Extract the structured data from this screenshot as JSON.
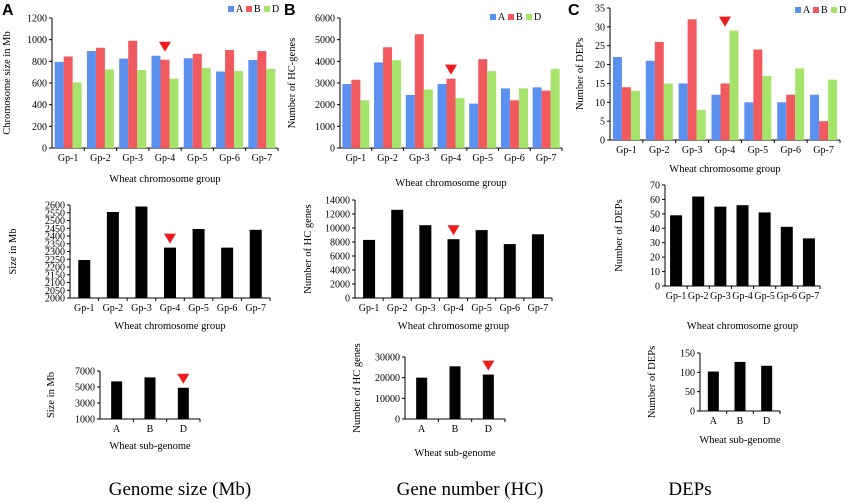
{
  "figure": {
    "colors": {
      "A": "#5b8ff0",
      "B": "#f05a5e",
      "D": "#a6e36a",
      "black": "#000000",
      "arrow": "#ee1c1c",
      "axis": "#000000"
    },
    "columns": [
      {
        "letter": "A",
        "title": "Genome size (Mb)"
      },
      {
        "letter": "B",
        "title": "Gene number (HC)"
      },
      {
        "letter": "C",
        "title": "DEPs"
      }
    ]
  },
  "chart_data": [
    {
      "id": "A-top",
      "type": "bar",
      "title": "",
      "xlabel": "Wheat chromosome group",
      "ylabel": "Chromosome size in Mb",
      "ylim": [
        0,
        1200
      ],
      "yticks": [
        0,
        200,
        400,
        600,
        800,
        1000,
        1200
      ],
      "categories": [
        "Gp-1",
        "Gp-2",
        "Gp-3",
        "Gp-4",
        "Gp-5",
        "Gp-6",
        "Gp-7"
      ],
      "series": [
        {
          "name": "A",
          "values": [
            795,
            895,
            825,
            852,
            828,
            706,
            812
          ]
        },
        {
          "name": "B",
          "values": [
            845,
            925,
            990,
            815,
            870,
            905,
            895
          ]
        },
        {
          "name": "D",
          "values": [
            605,
            725,
            720,
            640,
            740,
            710,
            730
          ]
        }
      ],
      "legend": [
        "A",
        "B",
        "D"
      ],
      "legend_position": "top-right",
      "highlight_category": "Gp-4"
    },
    {
      "id": "A-mid",
      "type": "bar",
      "title": "",
      "xlabel": "Wheat chromosome group",
      "ylabel": "Size in Mb",
      "ylim": [
        2000,
        2600
      ],
      "yticks": [
        2000,
        2050,
        2100,
        2150,
        2200,
        2250,
        2300,
        2350,
        2400,
        2450,
        2500,
        2550,
        2600
      ],
      "categories": [
        "Gp-1",
        "Gp-2",
        "Gp-3",
        "Gp-4",
        "Gp-5",
        "Gp-6",
        "Gp-7"
      ],
      "values": [
        2245,
        2555,
        2590,
        2325,
        2445,
        2325,
        2440
      ],
      "highlight_category": "Gp-4"
    },
    {
      "id": "A-bot",
      "type": "bar",
      "title": "",
      "xlabel": "Wheat sub-genome",
      "ylabel": "Size in Mb",
      "ylim": [
        1000,
        7000
      ],
      "yticks": [
        1000,
        3000,
        5000,
        7000
      ],
      "categories": [
        "A",
        "B",
        "D"
      ],
      "values": [
        5700,
        6200,
        4900
      ],
      "highlight_category": "D"
    },
    {
      "id": "B-top",
      "type": "bar",
      "title": "",
      "xlabel": "Wheat chromosome group",
      "ylabel": "Number of HC-genes",
      "ylim": [
        0,
        6000
      ],
      "yticks": [
        0,
        1000,
        2000,
        3000,
        4000,
        5000,
        6000
      ],
      "categories": [
        "Gp-1",
        "Gp-2",
        "Gp-3",
        "Gp-4",
        "Gp-5",
        "Gp-6",
        "Gp-7"
      ],
      "series": [
        {
          "name": "A",
          "values": [
            2950,
            3950,
            2450,
            2950,
            2050,
            2750,
            2800
          ]
        },
        {
          "name": "B",
          "values": [
            3150,
            4650,
            5250,
            3200,
            4100,
            2200,
            2650
          ]
        },
        {
          "name": "D",
          "values": [
            2200,
            4050,
            2700,
            2300,
            3550,
            2750,
            3650
          ]
        }
      ],
      "legend": [
        "A",
        "B",
        "D"
      ],
      "legend_position": "top-right",
      "highlight_category": "Gp-4"
    },
    {
      "id": "B-mid",
      "type": "bar",
      "title": "",
      "xlabel": "Wheat chromosome group",
      "ylabel": "Number of HC genes",
      "ylim": [
        0,
        14000
      ],
      "yticks": [
        0,
        2000,
        4000,
        6000,
        8000,
        10000,
        12000,
        14000
      ],
      "categories": [
        "Gp-1",
        "Gp-2",
        "Gp-3",
        "Gp-4",
        "Gp-5",
        "Gp-6",
        "Gp-7"
      ],
      "values": [
        8300,
        12600,
        10400,
        8400,
        9700,
        7700,
        9100
      ],
      "highlight_category": "Gp-4"
    },
    {
      "id": "B-bot",
      "type": "bar",
      "title": "",
      "xlabel": "Wheat sub-genome",
      "ylabel": "Number of HC genes",
      "ylim": [
        0,
        30000
      ],
      "yticks": [
        0,
        10000,
        20000,
        30000
      ],
      "categories": [
        "A",
        "B",
        "D"
      ],
      "values": [
        20000,
        25500,
        21500
      ],
      "highlight_category": "D"
    },
    {
      "id": "C-top",
      "type": "bar",
      "title": "",
      "xlabel": "Wheat chromosome group",
      "ylabel": "Number of DEPs",
      "ylim": [
        0,
        35
      ],
      "yticks": [
        0,
        5,
        10,
        15,
        20,
        25,
        30,
        35
      ],
      "categories": [
        "Gp-1",
        "Gp-2",
        "Gp-3",
        "Gp-4",
        "Gp-5",
        "Gp-6",
        "Gp-7"
      ],
      "series": [
        {
          "name": "A",
          "values": [
            22,
            21,
            15,
            12,
            10,
            10,
            12
          ]
        },
        {
          "name": "B",
          "values": [
            14,
            26,
            32,
            15,
            24,
            12,
            5
          ]
        },
        {
          "name": "D",
          "values": [
            13,
            15,
            8,
            29,
            17,
            19,
            16
          ]
        }
      ],
      "legend": [
        "A",
        "B",
        "D"
      ],
      "legend_position": "top-right",
      "highlight_category": "Gp-4"
    },
    {
      "id": "C-mid",
      "type": "bar",
      "title": "",
      "xlabel": "Wheat chromosome group",
      "ylabel": "Number of DEPs",
      "ylim": [
        0,
        70
      ],
      "yticks": [
        0,
        10,
        20,
        30,
        40,
        50,
        60,
        70
      ],
      "categories": [
        "Gp-1",
        "Gp-2",
        "Gp-3",
        "Gp-4",
        "Gp-5",
        "Gp-6",
        "Gp-7"
      ],
      "values": [
        49,
        62,
        55,
        56,
        51,
        41,
        33
      ]
    },
    {
      "id": "C-bot",
      "type": "bar",
      "title": "",
      "xlabel": "Wheat sub-genome",
      "ylabel": "Number of DEPs",
      "ylim": [
        0,
        150
      ],
      "yticks": [
        0,
        50,
        100,
        150
      ],
      "categories": [
        "A",
        "B",
        "D"
      ],
      "values": [
        102,
        127,
        117
      ]
    }
  ]
}
